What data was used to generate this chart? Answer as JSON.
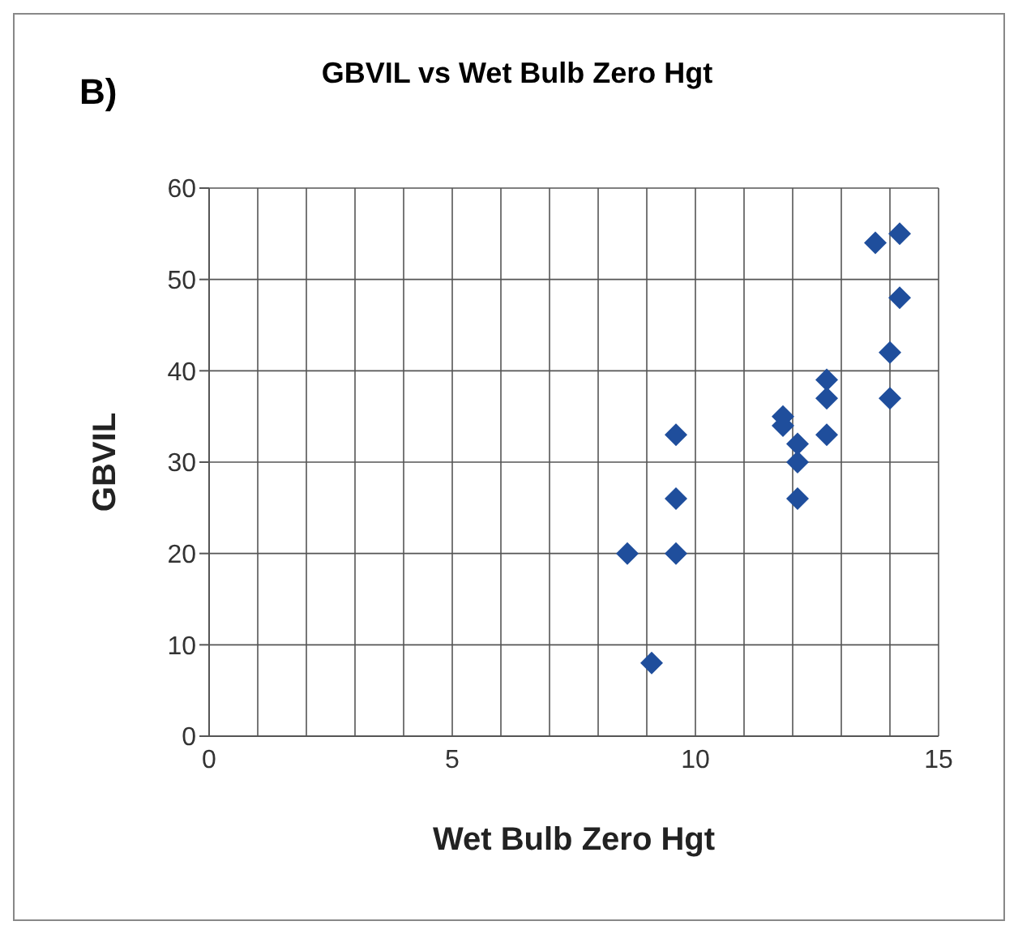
{
  "chart_data": {
    "type": "scatter",
    "title": "GBVIL vs Wet Bulb Zero Hgt",
    "xlabel": "Wet Bulb Zero Hgt",
    "ylabel": "GBVIL",
    "annotations": [
      "B)"
    ],
    "x": [
      14.2,
      13.7,
      14.2,
      14.0,
      14.0,
      12.7,
      12.7,
      12.7,
      11.8,
      11.8,
      12.1,
      12.1,
      12.1,
      9.6,
      9.6,
      9.6,
      8.6,
      9.1
    ],
    "series": [
      {
        "color": "#1f4e9c",
        "values": [
          55,
          54,
          48,
          42,
          37,
          39,
          37,
          33,
          35,
          34,
          32,
          30,
          26,
          33,
          26,
          20,
          20,
          8
        ]
      }
    ],
    "xlim": [
      0,
      15
    ],
    "xticks": [
      0,
      {
        "value": 1,
        "label": null
      },
      {
        "value": 2,
        "label": null
      },
      {
        "value": 3,
        "label": null
      },
      {
        "value": 4,
        "label": null
      },
      5,
      {
        "value": 6,
        "label": null
      },
      {
        "value": 7,
        "label": null
      },
      {
        "value": 8,
        "label": null
      },
      {
        "value": 9,
        "label": null
      },
      10,
      {
        "value": 11,
        "label": null
      },
      {
        "value": 12,
        "label": null
      },
      {
        "value": 13,
        "label": null
      },
      {
        "value": 14,
        "label": null
      },
      15
    ],
    "ylim": [
      0,
      60
    ],
    "yticks": [
      0,
      10,
      20,
      30,
      40,
      50,
      60
    ],
    "grid": true,
    "marker": "diamond",
    "legend": false
  }
}
